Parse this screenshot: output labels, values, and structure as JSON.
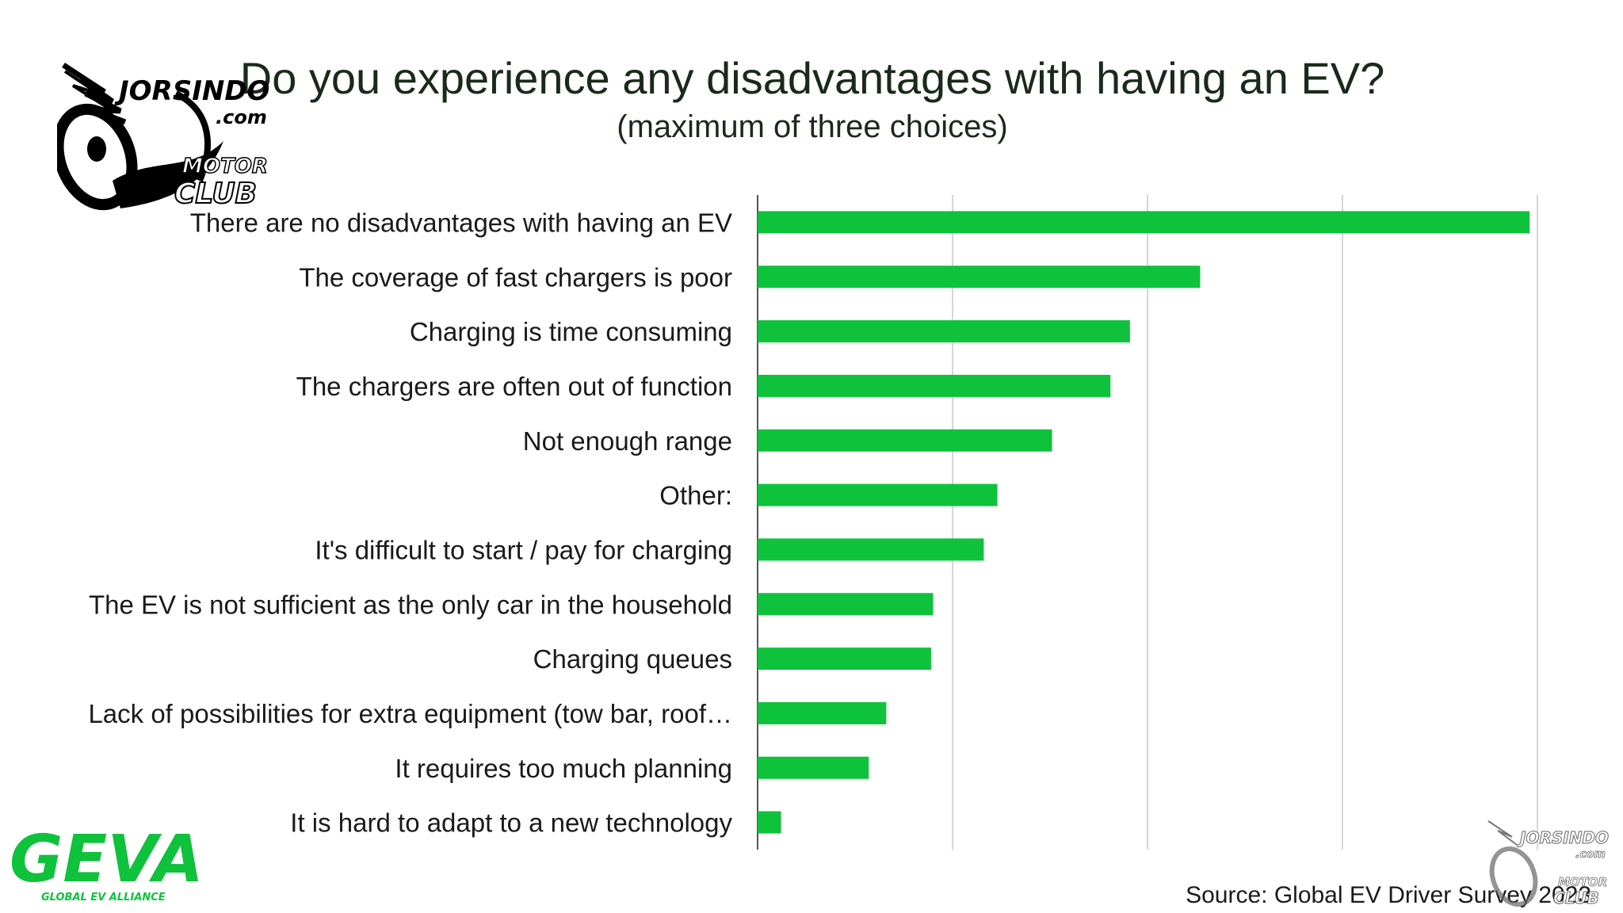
{
  "chart_data": {
    "type": "bar",
    "orientation": "horizontal",
    "title": "Do you experience any disadvantages with having an EV?",
    "subtitle": "(maximum of three choices)",
    "categories": [
      "There are no disadvantages with having an EV",
      "The coverage of fast chargers is poor",
      "Charging is time consuming",
      "The chargers are often out of function",
      "Not enough range",
      "Other:",
      "It's difficult to start / pay for charging",
      "The EV is not sufficient as the only car in the household",
      "Charging queues",
      "Lack of possibilities for extra equipment (tow bar, roof…",
      "It requires too much planning",
      "It is hard to adapt to a new technology"
    ],
    "values": [
      39.6,
      22.7,
      19.1,
      18.1,
      15.1,
      12.3,
      11.6,
      9.0,
      8.9,
      6.6,
      5.7,
      1.2
    ],
    "xlim": [
      0,
      40
    ],
    "grid": true,
    "bar_color": "#0ec23c",
    "grid_color": "#d6d6d6"
  },
  "source": "Source: Global EV Driver Survey 2023",
  "logos": {
    "top_brand": "JORSINDO",
    "top_domain": ".com",
    "top_motor": "MOTOR",
    "top_club": "CLUB",
    "geva_name": "GEVA",
    "geva_tagline": "GLOBAL EV ALLIANCE",
    "geva_color": "#0ec23c"
  }
}
